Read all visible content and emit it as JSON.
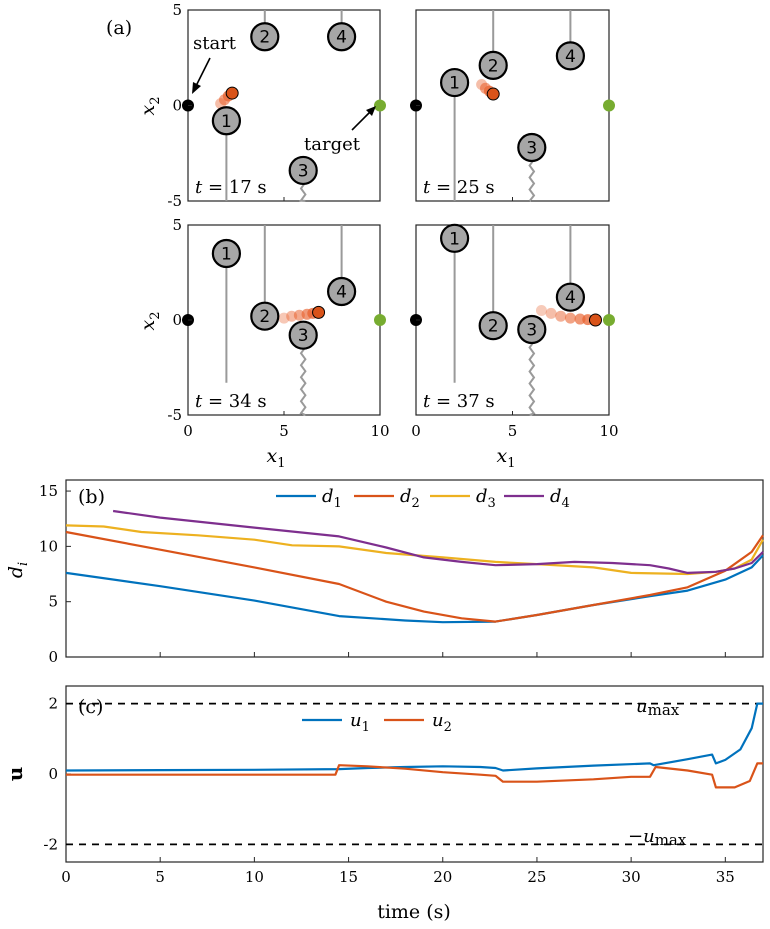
{
  "chart_data": [
    {
      "type": "scatter",
      "panel_label": "(a)",
      "xlabel": "x1",
      "ylabel": "x2",
      "xlim": [
        0,
        10
      ],
      "ylim": [
        -5,
        5
      ],
      "xticks": [
        "0",
        "5",
        "10"
      ],
      "yticks": [
        "5",
        "0",
        "-5"
      ],
      "annotations": {
        "start": "start",
        "target": "target"
      },
      "start_point": [
        0,
        0
      ],
      "target_point": [
        10,
        0
      ],
      "subplots": [
        {
          "time_label": "t = 17 s",
          "obstacles": [
            {
              "id": "1",
              "x": 2.0,
              "y": -0.8,
              "trail_bottom": -5.0
            },
            {
              "id": "2",
              "x": 4.0,
              "y": 3.6,
              "trail_top": 5.0
            },
            {
              "id": "3",
              "x": 6.0,
              "y": -3.4,
              "trail_bottom": -5.0
            },
            {
              "id": "4",
              "x": 8.0,
              "y": 3.6,
              "trail_top": 5.0
            }
          ],
          "robot": [
            2.3,
            0.65
          ],
          "robot_trail": [
            [
              1.7,
              0.1
            ],
            [
              1.9,
              0.3
            ],
            [
              2.1,
              0.5
            ]
          ]
        },
        {
          "time_label": "t = 25 s",
          "obstacles": [
            {
              "id": "1",
              "x": 2.0,
              "y": 1.2,
              "trail_bottom": -5.0
            },
            {
              "id": "2",
              "x": 4.0,
              "y": 2.1,
              "trail_top": 5.0
            },
            {
              "id": "3",
              "x": 6.0,
              "y": -2.2,
              "trail_bottom": -5.0
            },
            {
              "id": "4",
              "x": 8.0,
              "y": 2.6,
              "trail_top": 5.0
            }
          ],
          "robot": [
            4.0,
            0.6
          ],
          "robot_trail": [
            [
              3.4,
              1.1
            ],
            [
              3.6,
              0.9
            ],
            [
              3.8,
              0.75
            ]
          ]
        },
        {
          "time_label": "t = 34 s",
          "obstacles": [
            {
              "id": "1",
              "x": 2.0,
              "y": 3.5,
              "trail_bottom": -3.3
            },
            {
              "id": "2",
              "x": 4.0,
              "y": 0.2,
              "trail_top": 5.0
            },
            {
              "id": "3",
              "x": 6.0,
              "y": -0.8,
              "trail_bottom": -5.0
            },
            {
              "id": "4",
              "x": 8.0,
              "y": 1.5,
              "trail_top": 5.0
            }
          ],
          "robot": [
            6.8,
            0.4
          ],
          "robot_trail": [
            [
              5.0,
              0.1
            ],
            [
              5.4,
              0.2
            ],
            [
              5.8,
              0.25
            ],
            [
              6.2,
              0.3
            ],
            [
              6.5,
              0.35
            ]
          ]
        },
        {
          "time_label": "t = 37 s",
          "obstacles": [
            {
              "id": "1",
              "x": 2.0,
              "y": 4.3,
              "trail_bottom": -3.3
            },
            {
              "id": "2",
              "x": 4.0,
              "y": -0.3,
              "trail_top": 5.0
            },
            {
              "id": "3",
              "x": 6.0,
              "y": -0.5,
              "trail_bottom": -5.0
            },
            {
              "id": "4",
              "x": 8.0,
              "y": 1.2,
              "trail_top": 5.0
            }
          ],
          "robot": [
            9.3,
            0.0
          ],
          "robot_trail": [
            [
              6.5,
              0.5
            ],
            [
              7.0,
              0.35
            ],
            [
              7.5,
              0.2
            ],
            [
              8.0,
              0.1
            ],
            [
              8.5,
              0.05
            ],
            [
              8.9,
              0.02
            ]
          ]
        }
      ]
    },
    {
      "type": "line",
      "panel_label": "(b)",
      "ylabel": "d_i",
      "xlim": [
        0,
        37
      ],
      "ylim": [
        0,
        16
      ],
      "yticks": [
        "0",
        "5",
        "10",
        "15"
      ],
      "series": [
        {
          "name": "d1",
          "color": "#0072BD",
          "points": [
            [
              0,
              7.6
            ],
            [
              5,
              6.4
            ],
            [
              10,
              5.1
            ],
            [
              14.5,
              3.7
            ],
            [
              18,
              3.3
            ],
            [
              20,
              3.15
            ],
            [
              22.8,
              3.2
            ],
            [
              25,
              3.8
            ],
            [
              28,
              4.7
            ],
            [
              31,
              5.5
            ],
            [
              33,
              6.0
            ],
            [
              35,
              7.0
            ],
            [
              36.4,
              8.1
            ],
            [
              37,
              9.2
            ]
          ]
        },
        {
          "name": "d2",
          "color": "#D95319",
          "points": [
            [
              0,
              11.3
            ],
            [
              5,
              9.7
            ],
            [
              10,
              8.1
            ],
            [
              14.5,
              6.6
            ],
            [
              17,
              5.0
            ],
            [
              19,
              4.1
            ],
            [
              21,
              3.5
            ],
            [
              22.8,
              3.2
            ],
            [
              25,
              3.8
            ],
            [
              28,
              4.7
            ],
            [
              31,
              5.6
            ],
            [
              33,
              6.3
            ],
            [
              35,
              7.8
            ],
            [
              36.4,
              9.5
            ],
            [
              37,
              11.0
            ]
          ]
        },
        {
          "name": "d3",
          "color": "#EDB120",
          "points": [
            [
              0,
              11.9
            ],
            [
              2,
              11.8
            ],
            [
              4,
              11.3
            ],
            [
              7,
              11.0
            ],
            [
              10,
              10.6
            ],
            [
              12,
              10.1
            ],
            [
              14.5,
              10.0
            ],
            [
              17,
              9.4
            ],
            [
              20,
              9.0
            ],
            [
              22.8,
              8.6
            ],
            [
              25,
              8.4
            ],
            [
              28,
              8.1
            ],
            [
              30,
              7.6
            ],
            [
              33,
              7.5
            ],
            [
              34.5,
              7.7
            ],
            [
              35.5,
              8.0
            ],
            [
              36.4,
              8.8
            ],
            [
              37,
              10.6
            ]
          ]
        },
        {
          "name": "d4",
          "color": "#7E2F8E",
          "points": [
            [
              2.5,
              13.2
            ],
            [
              5,
              12.6
            ],
            [
              10,
              11.7
            ],
            [
              14.5,
              10.9
            ],
            [
              17,
              9.9
            ],
            [
              19,
              9.0
            ],
            [
              21,
              8.6
            ],
            [
              22.8,
              8.3
            ],
            [
              25,
              8.4
            ],
            [
              27,
              8.6
            ],
            [
              29,
              8.5
            ],
            [
              31,
              8.3
            ],
            [
              32,
              8.0
            ],
            [
              33,
              7.6
            ],
            [
              34.5,
              7.7
            ],
            [
              35.5,
              8.0
            ],
            [
              36.4,
              8.5
            ],
            [
              37,
              9.5
            ]
          ]
        }
      ]
    },
    {
      "type": "line",
      "panel_label": "(c)",
      "ylabel": "u",
      "xlabel": "time (s)",
      "xlim": [
        0,
        37
      ],
      "ylim": [
        -2.5,
        2.5
      ],
      "xticks": [
        "0",
        "5",
        "10",
        "15",
        "20",
        "25",
        "30",
        "35"
      ],
      "yticks": [
        "2",
        "0",
        "-2"
      ],
      "umax_label": "umax",
      "neg_umax_label": "−umax",
      "bounds": [
        2,
        -2
      ],
      "series": [
        {
          "name": "u1",
          "color": "#0072BD",
          "points": [
            [
              0,
              0.1
            ],
            [
              5,
              0.11
            ],
            [
              10,
              0.12
            ],
            [
              14.5,
              0.14
            ],
            [
              16,
              0.17
            ],
            [
              18,
              0.2
            ],
            [
              20,
              0.22
            ],
            [
              22,
              0.2
            ],
            [
              22.8,
              0.17
            ],
            [
              23.2,
              0.1
            ],
            [
              25,
              0.16
            ],
            [
              28,
              0.24
            ],
            [
              31,
              0.3
            ],
            [
              31.2,
              0.25
            ],
            [
              33,
              0.42
            ],
            [
              34.3,
              0.55
            ],
            [
              34.5,
              0.3
            ],
            [
              35,
              0.4
            ],
            [
              35.8,
              0.7
            ],
            [
              36.4,
              1.3
            ],
            [
              36.7,
              2.0
            ],
            [
              37,
              2.0
            ]
          ]
        },
        {
          "name": "u2",
          "color": "#D95319",
          "points": [
            [
              0,
              -0.02
            ],
            [
              5,
              -0.02
            ],
            [
              10,
              -0.02
            ],
            [
              14.3,
              -0.02
            ],
            [
              14.5,
              0.25
            ],
            [
              16,
              0.22
            ],
            [
              18,
              0.15
            ],
            [
              20,
              0.05
            ],
            [
              22,
              -0.02
            ],
            [
              22.8,
              -0.05
            ],
            [
              23.2,
              -0.22
            ],
            [
              25,
              -0.22
            ],
            [
              28,
              -0.15
            ],
            [
              30,
              -0.08
            ],
            [
              31,
              -0.08
            ],
            [
              31.3,
              0.2
            ],
            [
              33,
              0.1
            ],
            [
              34.3,
              -0.02
            ],
            [
              34.5,
              -0.38
            ],
            [
              35.5,
              -0.38
            ],
            [
              36.3,
              -0.2
            ],
            [
              36.7,
              0.3
            ],
            [
              37,
              0.3
            ]
          ]
        }
      ]
    }
  ]
}
